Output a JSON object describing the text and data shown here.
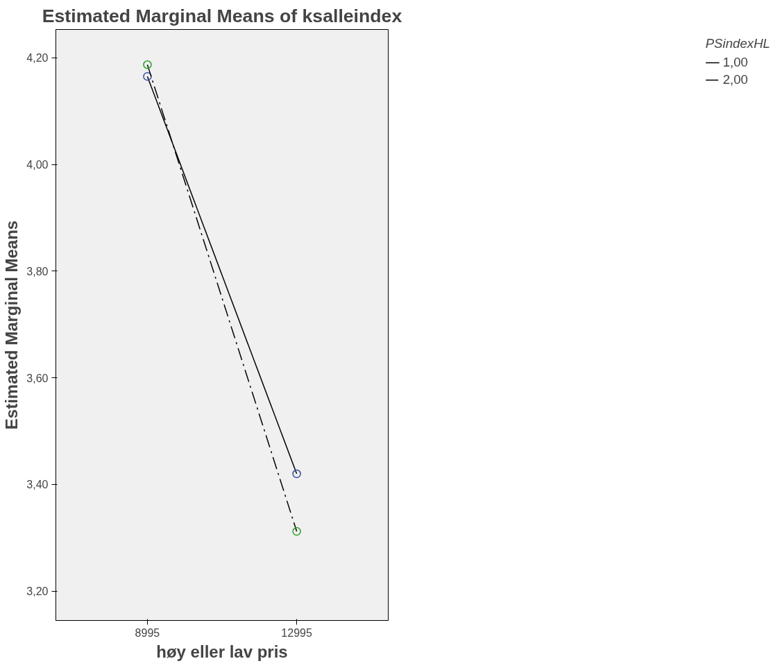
{
  "chart_data": {
    "type": "line",
    "title": "Estimated Marginal Means of ksalleindex",
    "xlabel": "høy eller lav pris",
    "ylabel": "Estimated Marginal Means",
    "legend_title": "PSindexHL",
    "categories": [
      "8995",
      "12995"
    ],
    "series": [
      {
        "name": "1,00",
        "color": "#000000",
        "colors": [
          "#3a4ea0",
          "#3a4ea0"
        ],
        "line_style": "solid",
        "values": [
          4.165,
          3.42
        ]
      },
      {
        "name": "2,00",
        "color": "#000000",
        "colors": [
          "#2ca02c",
          "#2ca02c"
        ],
        "line_style": "dashed",
        "values": [
          4.187,
          3.312
        ]
      }
    ],
    "ylim": [
      3.145,
      4.253
    ],
    "yticks": [
      {
        "value": 3.2,
        "label": "3,20"
      },
      {
        "value": 3.4,
        "label": "3,40"
      },
      {
        "value": 3.6,
        "label": "3,60"
      },
      {
        "value": 3.8,
        "label": "3,80"
      },
      {
        "value": 4.0,
        "label": "4,00"
      },
      {
        "value": 4.2,
        "label": "4,20"
      }
    ],
    "marker": "circle",
    "grid": false,
    "legend": "top right"
  }
}
